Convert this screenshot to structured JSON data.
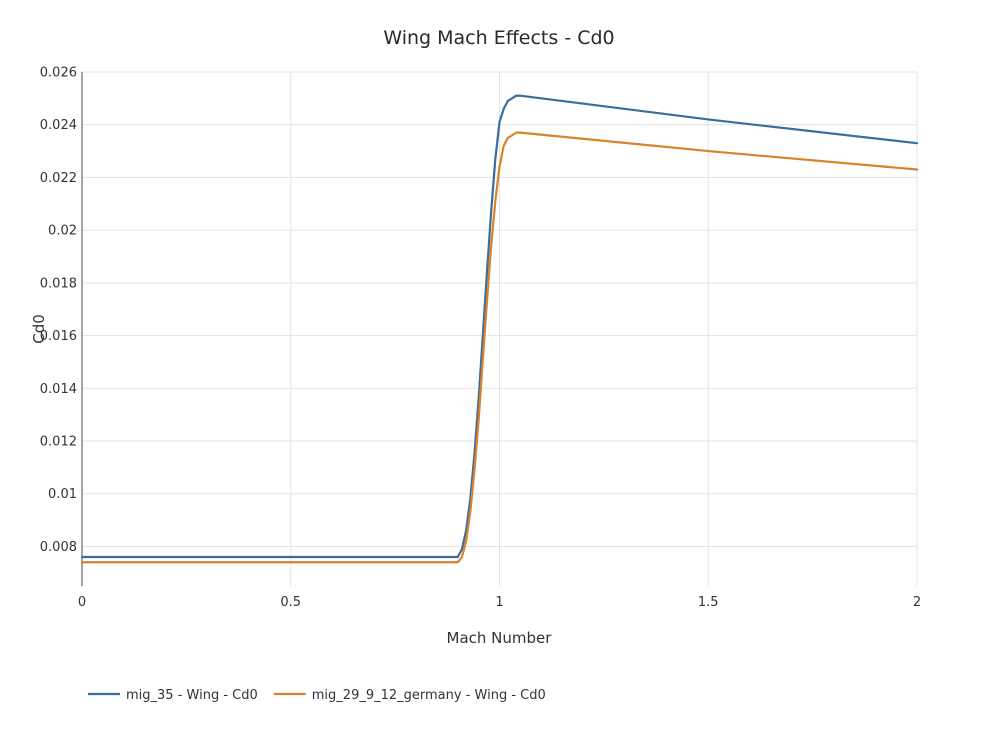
{
  "chart_data": {
    "type": "line",
    "title": "Wing Mach Effects - Cd0",
    "xlabel": "Mach Number",
    "ylabel": "Cd0",
    "xlim": [
      0,
      2
    ],
    "ylim": [
      0.0065,
      0.026
    ],
    "x_ticks": [
      0,
      0.5,
      1,
      1.5,
      2
    ],
    "x_tick_labels": [
      "0",
      "0.5",
      "1",
      "1.5",
      "2"
    ],
    "y_ticks": [
      0.008,
      0.01,
      0.012,
      0.014,
      0.016,
      0.018,
      0.02,
      0.022,
      0.024,
      0.026
    ],
    "y_tick_labels": [
      "0.008",
      "0.01",
      "0.012",
      "0.014",
      "0.016",
      "0.018",
      "0.02",
      "0.022",
      "0.024",
      "0.026"
    ],
    "grid": true,
    "legend_position": "bottom-left",
    "series": [
      {
        "name": "mig_35 - Wing - Cd0",
        "color": "#3a6d99",
        "x": [
          0,
          0.9,
          0.91,
          0.92,
          0.93,
          0.94,
          0.95,
          0.96,
          0.97,
          0.98,
          0.99,
          1.0,
          1.01,
          1.02,
          1.03,
          1.04,
          1.05,
          1.5,
          2.0
        ],
        "y": [
          0.0076,
          0.0076,
          0.0079,
          0.0086,
          0.0098,
          0.0115,
          0.0136,
          0.016,
          0.0184,
          0.0207,
          0.0227,
          0.0241,
          0.0246,
          0.0249,
          0.025,
          0.0251,
          0.0251,
          0.0242,
          0.0233
        ]
      },
      {
        "name": "mig_29_9_12_germany - Wing - Cd0",
        "color": "#d9822b",
        "x": [
          0,
          0.9,
          0.91,
          0.92,
          0.93,
          0.94,
          0.95,
          0.96,
          0.97,
          0.98,
          0.99,
          1.0,
          1.01,
          1.02,
          1.03,
          1.04,
          1.05,
          1.5,
          2.0
        ],
        "y": [
          0.0074,
          0.0074,
          0.0076,
          0.0082,
          0.0093,
          0.0109,
          0.0128,
          0.0151,
          0.0173,
          0.0194,
          0.0211,
          0.0224,
          0.0232,
          0.0235,
          0.0236,
          0.0237,
          0.0237,
          0.023,
          0.0223
        ]
      }
    ]
  }
}
